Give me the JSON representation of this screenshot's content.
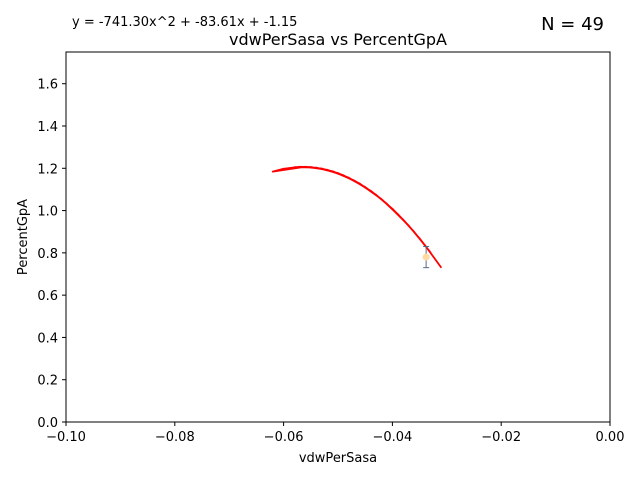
{
  "chart_data": {
    "type": "line",
    "title": "vdwPerSasa vs PercentGpA",
    "xlabel": "vdwPerSasa",
    "ylabel": "PercentGpA",
    "equation": "y = -741.30x^2 + -83.61x + -1.15",
    "n_label": "N = 49",
    "xlim": [
      -0.1,
      0.0
    ],
    "ylim": [
      0.0,
      1.75
    ],
    "xticks": [
      -0.1,
      -0.08,
      -0.06,
      -0.04,
      -0.02,
      0.0
    ],
    "xtick_labels": [
      "−0.10",
      "−0.08",
      "−0.06",
      "−0.04",
      "−0.02",
      "0.00"
    ],
    "yticks": [
      0.0,
      0.2,
      0.4,
      0.6,
      0.8,
      1.0,
      1.2,
      1.4,
      1.6
    ],
    "ytick_labels": [
      "0.0",
      "0.2",
      "0.4",
      "0.6",
      "0.8",
      "1.0",
      "1.2",
      "1.4",
      "1.6"
    ],
    "grid": false,
    "series": [
      {
        "color": "#ff0000",
        "x": [
          -0.031,
          -0.034,
          -0.037,
          -0.04,
          -0.043,
          -0.047,
          -0.051,
          -0.055,
          -0.058,
          -0.054,
          -0.05,
          -0.046,
          -0.042,
          -0.038,
          -0.035,
          -0.033,
          -0.036,
          -0.039,
          -0.042,
          -0.045,
          -0.049,
          -0.053,
          -0.057,
          -0.06,
          -0.062,
          -0.056,
          -0.052,
          -0.048,
          -0.044,
          -0.041,
          -0.037,
          -0.034,
          -0.031
        ]
      },
      {
        "color": "#ff0000",
        "type": "outlier",
        "x": [
          -0.0338
        ],
        "y": [
          0.78
        ]
      }
    ],
    "marker": {
      "color": "#ffd9a0",
      "x": -0.0338,
      "y": 0.78,
      "err_low": 0.73,
      "err_high": 0.83,
      "err_color": "#5a6a8a"
    }
  }
}
